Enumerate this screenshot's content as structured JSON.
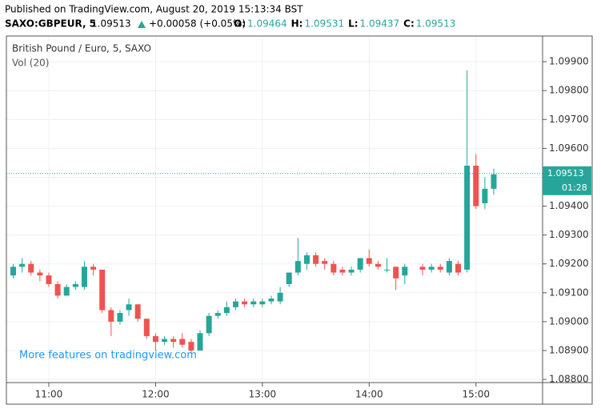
{
  "chart_data": {
    "type": "candlestick",
    "header": {
      "published": "Published on TradingView.com, August 20, 2019 15:13:34 BST",
      "symbol": "SAXO:GBPEUR, 5",
      "last": "1.09513",
      "change": "+0.00058 (+0.05%)",
      "ohlc": [
        {
          "label": "O:",
          "value": "1.09464"
        },
        {
          "label": "H:",
          "value": "1.09531"
        },
        {
          "label": "L:",
          "value": "1.09437"
        },
        {
          "label": "C:",
          "value": "1.09513"
        }
      ]
    },
    "title": "British Pound / Euro, 5, SAXO",
    "indicator": "Vol (20)",
    "watermark": "More features on tradingview.com",
    "x": [
      "10:40",
      "10:45",
      "10:50",
      "10:55",
      "11:00",
      "11:05",
      "11:10",
      "11:15",
      "11:20",
      "11:25",
      "11:30",
      "11:35",
      "11:40",
      "11:45",
      "11:50",
      "11:55",
      "12:00",
      "12:05",
      "12:10",
      "12:15",
      "12:20",
      "12:25",
      "12:30",
      "12:35",
      "12:40",
      "12:45",
      "12:50",
      "12:55",
      "13:00",
      "13:05",
      "13:10",
      "13:15",
      "13:20",
      "13:25",
      "13:30",
      "13:35",
      "13:40",
      "13:45",
      "13:50",
      "13:55",
      "14:00",
      "14:05",
      "14:10",
      "14:15",
      "14:20",
      "14:30",
      "14:35",
      "14:40",
      "14:45",
      "14:50",
      "14:55",
      "15:00",
      "15:05",
      "15:10"
    ],
    "xticks": [
      "11:00",
      "12:00",
      "13:00",
      "14:00",
      "15:00"
    ],
    "open": [
      1.0916,
      1.0919,
      1.092,
      1.0917,
      1.0916,
      1.0913,
      1.0909,
      1.0912,
      1.0912,
      1.0919,
      1.0918,
      1.0904,
      1.09,
      1.0904,
      1.0906,
      1.0901,
      1.0895,
      1.0893,
      1.0894,
      1.0894,
      1.0893,
      1.089,
      1.0896,
      1.0902,
      1.0903,
      1.0905,
      1.0907,
      1.0906,
      1.0906,
      1.0907,
      1.0907,
      1.0913,
      1.0917,
      1.092,
      1.0923,
      1.0921,
      1.092,
      1.0918,
      1.0917,
      1.0918,
      1.0922,
      1.092,
      1.0918,
      1.0919,
      1.0916,
      1.0919,
      1.0918,
      1.0919,
      1.0917,
      1.092,
      1.0918,
      1.0954,
      1.0941,
      1.0946
    ],
    "high": [
      1.092,
      1.0922,
      1.0921,
      1.0918,
      1.0917,
      1.0914,
      1.0913,
      1.0914,
      1.0921,
      1.092,
      1.0918,
      1.0905,
      1.0904,
      1.0908,
      1.0906,
      1.0901,
      1.0896,
      1.0895,
      1.0895,
      1.0896,
      1.0894,
      1.0897,
      1.0903,
      1.0904,
      1.0907,
      1.0908,
      1.0908,
      1.0908,
      1.0908,
      1.0909,
      1.0912,
      1.0917,
      1.0929,
      1.0924,
      1.0924,
      1.0922,
      1.0921,
      1.0919,
      1.0919,
      1.0922,
      1.0925,
      1.0921,
      1.0922,
      1.0919,
      1.092,
      1.092,
      1.092,
      1.092,
      1.0922,
      1.0921,
      1.0987,
      1.0958,
      1.095,
      1.0953
    ],
    "low": [
      1.0915,
      1.0917,
      1.0916,
      1.0914,
      1.0912,
      1.0908,
      1.0909,
      1.0911,
      1.0911,
      1.0916,
      1.0903,
      1.0895,
      1.0899,
      1.0902,
      1.09,
      1.0894,
      1.089,
      1.0892,
      1.0891,
      1.0891,
      1.0889,
      1.089,
      1.0895,
      1.0901,
      1.0902,
      1.0904,
      1.0905,
      1.0905,
      1.0905,
      1.0906,
      1.0906,
      1.0912,
      1.0916,
      1.0918,
      1.0919,
      1.0918,
      1.0916,
      1.0916,
      1.0916,
      1.0917,
      1.0919,
      1.0918,
      1.0917,
      1.0911,
      1.0913,
      1.0916,
      1.0917,
      1.0917,
      1.0916,
      1.0916,
      1.0917,
      1.0939,
      1.0939,
      1.0944
    ],
    "close": [
      1.0919,
      1.092,
      1.0917,
      1.0916,
      1.0913,
      1.0909,
      1.0912,
      1.0913,
      1.0919,
      1.0918,
      1.0904,
      1.09,
      1.0903,
      1.0906,
      1.0901,
      1.0895,
      1.0893,
      1.0894,
      1.0893,
      1.0892,
      1.089,
      1.0896,
      1.0902,
      1.0903,
      1.0905,
      1.0907,
      1.0906,
      1.0907,
      1.0907,
      1.0908,
      1.091,
      1.0917,
      1.0921,
      1.0923,
      1.092,
      1.092,
      1.0917,
      1.0917,
      1.0918,
      1.0922,
      1.092,
      1.0919,
      1.0918,
      1.0915,
      1.0919,
      1.0918,
      1.0919,
      1.0918,
      1.0921,
      1.0917,
      1.0954,
      1.094,
      1.0946,
      1.0951
    ],
    "up_color": "#26a69a",
    "down_color": "#ef5350",
    "last_price": 1.09513,
    "countdown": "01:28",
    "ylim": [
      1.08789,
      1.09989
    ],
    "yticks": [
      {
        "value": 1.088,
        "label": "1.08800"
      },
      {
        "value": 1.089,
        "label": "1.08900"
      },
      {
        "value": 1.09,
        "label": "1.09000"
      },
      {
        "value": 1.091,
        "label": "1.09100"
      },
      {
        "value": 1.092,
        "label": "1.09200"
      },
      {
        "value": 1.093,
        "label": "1.09300"
      },
      {
        "value": 1.094,
        "label": "1.09400"
      },
      {
        "value": 1.095,
        "label": "1.09500"
      },
      {
        "value": 1.096,
        "label": "1.09600"
      },
      {
        "value": 1.097,
        "label": "1.09700"
      },
      {
        "value": 1.098,
        "label": "1.09800"
      },
      {
        "value": 1.099,
        "label": "1.09900"
      }
    ],
    "grid": true
  }
}
